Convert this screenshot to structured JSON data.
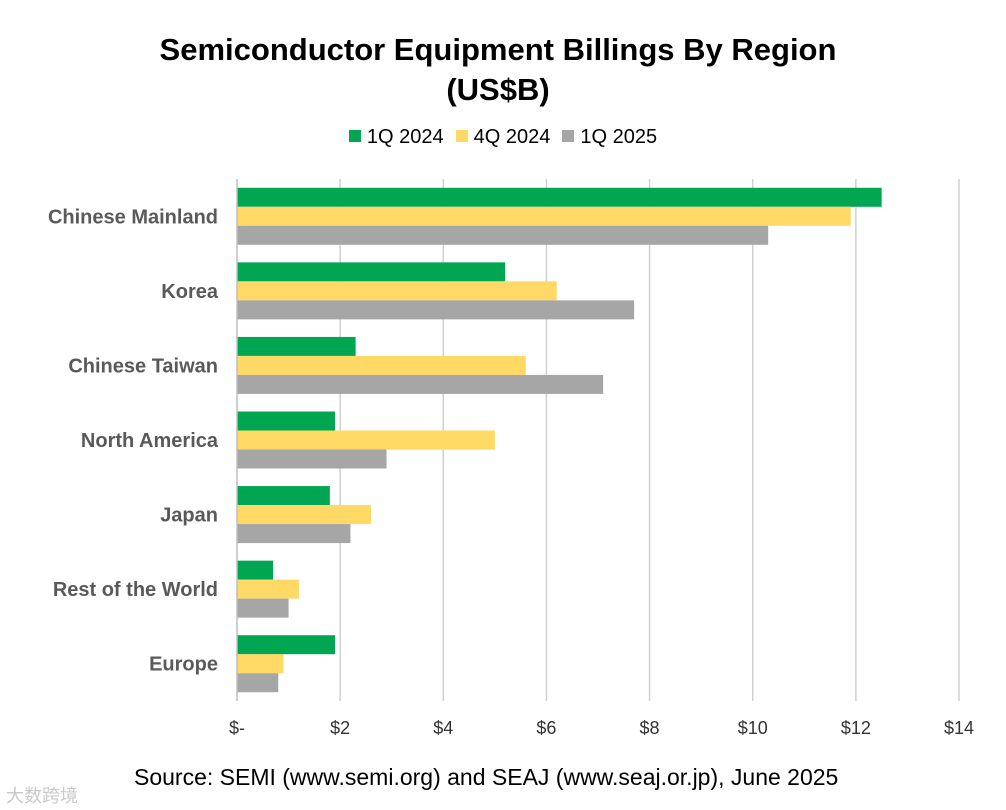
{
  "chart_data": {
    "type": "bar",
    "orientation": "horizontal",
    "title": "Semiconductor Equipment Billings By Region",
    "subtitle": "(US$B)",
    "categories": [
      "Chinese Mainland",
      "Korea",
      "Chinese Taiwan",
      "North America",
      "Japan",
      "Rest of the World",
      "Europe"
    ],
    "series": [
      {
        "name": "1Q 2024",
        "color": "#00a651",
        "values": [
          12.5,
          5.2,
          2.3,
          1.9,
          1.8,
          0.7,
          1.9
        ]
      },
      {
        "name": "4Q 2024",
        "color": "#ffd966",
        "values": [
          11.9,
          6.2,
          5.6,
          5.0,
          2.6,
          1.2,
          0.9
        ]
      },
      {
        "name": "1Q 2025",
        "color": "#a6a6a6",
        "values": [
          10.3,
          7.7,
          7.1,
          2.9,
          2.2,
          1.0,
          0.8
        ]
      }
    ],
    "x_ticks": [
      "$-",
      "$2",
      "$4",
      "$6",
      "$8",
      "$10",
      "$12",
      "$14"
    ],
    "xlim": [
      0,
      14
    ],
    "grid": true,
    "legend_position": "top"
  },
  "source": "Source: SEMI (www.semi.org) and SEAJ (www.seaj.or.jp), June 2025",
  "watermark": "大数跨境"
}
